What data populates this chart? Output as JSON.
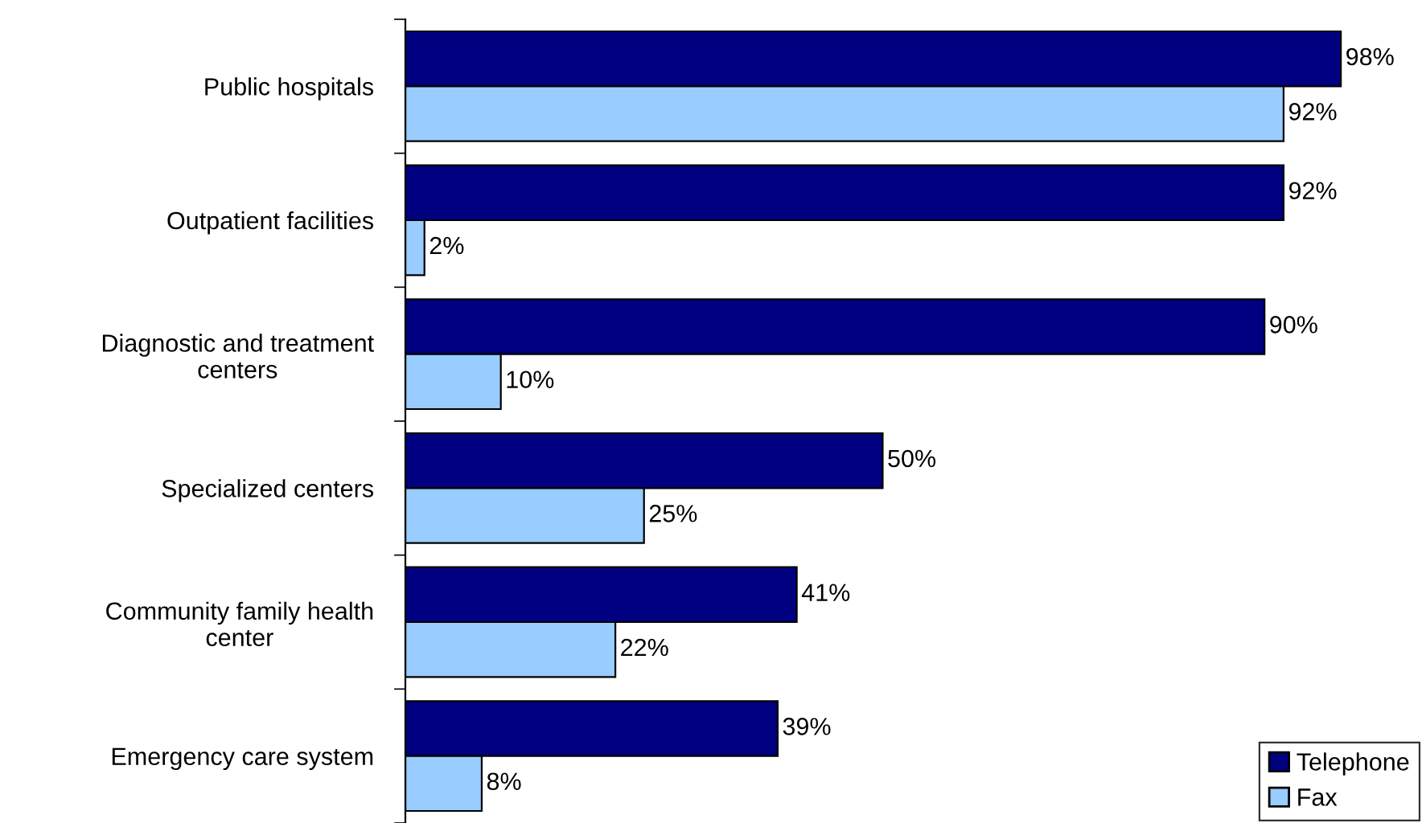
{
  "chart_data": {
    "type": "bar",
    "orientation": "horizontal",
    "categories": [
      "Public hospitals",
      "Outpatient facilities",
      "Diagnostic and treatment\ncenters",
      "Specialized centers",
      "Community family health\ncenter",
      "Emergency care system"
    ],
    "series": [
      {
        "name": "Telephone",
        "color": "#000080",
        "values": [
          98,
          92,
          90,
          50,
          41,
          39
        ],
        "value_labels": [
          "98%",
          "92%",
          "90%",
          "50%",
          "41%",
          "39%"
        ]
      },
      {
        "name": "Fax",
        "color": "#99ccff",
        "values": [
          92,
          2,
          10,
          25,
          22,
          8
        ],
        "value_labels": [
          "92%",
          "2%",
          "10%",
          "25%",
          "22%",
          "8%"
        ]
      }
    ],
    "xlim": [
      0,
      106.5
    ],
    "tick_labels": "y",
    "legend": "bottom right",
    "grid": false
  }
}
